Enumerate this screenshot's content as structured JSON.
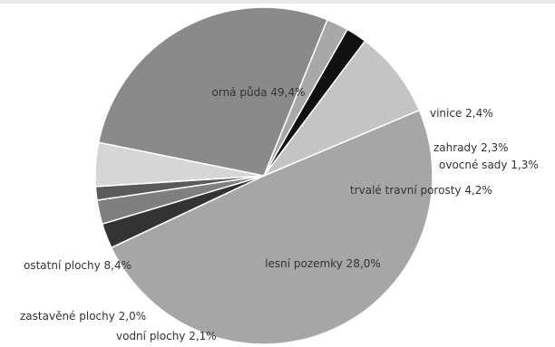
{
  "chart_data": {
    "type": "pie",
    "title": "",
    "slices": [
      {
        "label": "orná půda",
        "value": 49.4,
        "display": "orná půda 49,4%",
        "color": "#a6a6a6"
      },
      {
        "label": "vinice",
        "value": 2.4,
        "display": "vinice 2,4%",
        "color": "#333333"
      },
      {
        "label": "zahrady",
        "value": 2.3,
        "display": "zahrady 2,3%",
        "color": "#7f7f7f"
      },
      {
        "label": "ovocné sady",
        "value": 1.3,
        "display": "ovocné sady 1,3%",
        "color": "#5a5a5a"
      },
      {
        "label": "trvalé travní porosty",
        "value": 4.2,
        "display": "trvalé travní porosty 4,2%",
        "color": "#d6d6d6"
      },
      {
        "label": "lesní pozemky",
        "value": 28.0,
        "display": "lesní pozemky 28,0%",
        "color": "#8a8a8a"
      },
      {
        "label": "vodní plochy",
        "value": 2.1,
        "display": "vodní plochy 2,1%",
        "color": "#a8a8a8"
      },
      {
        "label": "zastavěné plochy",
        "value": 2.0,
        "display": "zastavěné plochy 2,0%",
        "color": "#111111"
      },
      {
        "label": "ostatní plochy",
        "value": 8.4,
        "display": "ostatní plochy 8,4%",
        "color": "#c4c4c4"
      }
    ]
  }
}
